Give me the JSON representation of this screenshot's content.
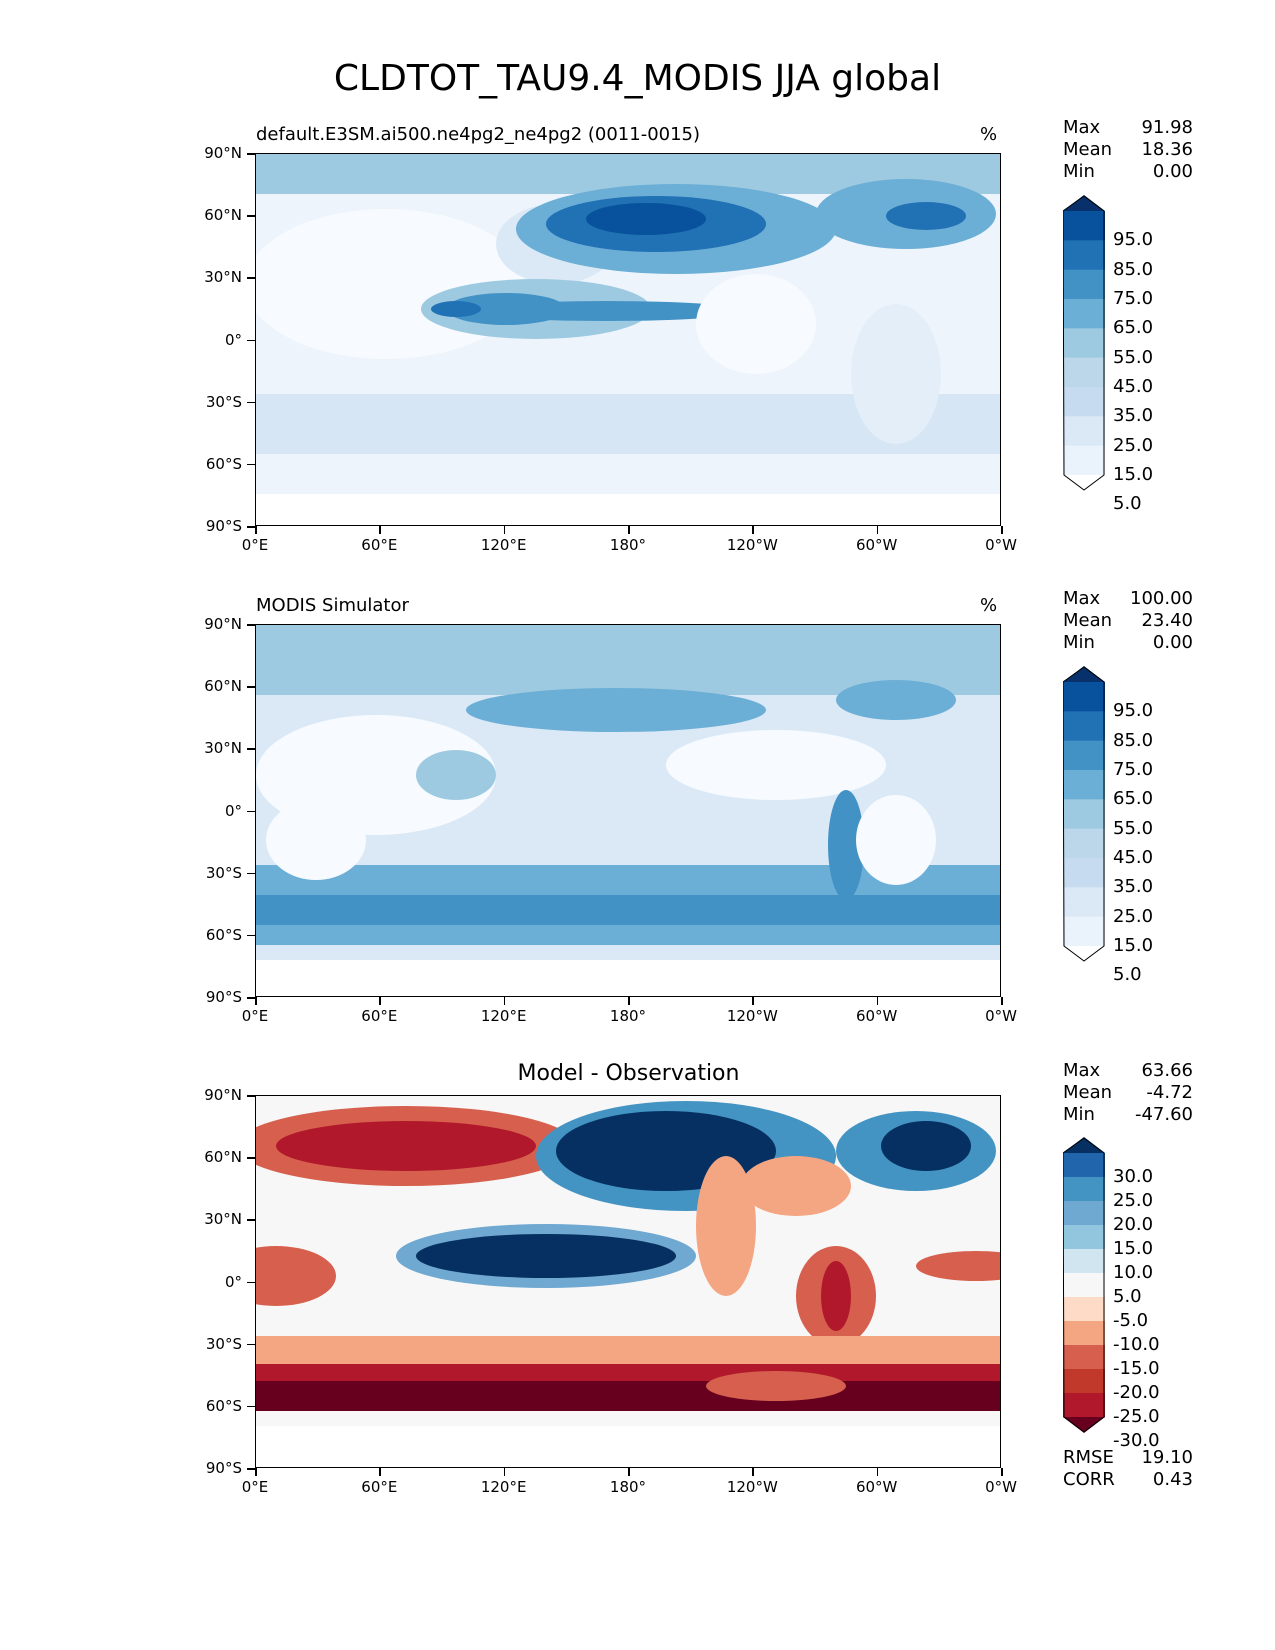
{
  "title": "CLDTOT_TAU9.4_MODIS JJA global",
  "axes": {
    "y_ticks": [
      "90°N",
      "60°N",
      "30°N",
      "0°",
      "30°S",
      "60°S",
      "90°S"
    ],
    "x_ticks": [
      "0°E",
      "60°E",
      "120°E",
      "180°",
      "120°W",
      "60°W",
      "0°W"
    ]
  },
  "panels": [
    {
      "title": "default.E3SM.ai500.ne4pg2_ne4pg2 (0011-0015)",
      "units": "%",
      "stats": [
        {
          "label": "Max",
          "value": "91.98"
        },
        {
          "label": "Mean",
          "value": "18.36"
        },
        {
          "label": "Min",
          "value": "0.00"
        }
      ],
      "colorbar": {
        "labels": [
          "95.0",
          "85.0",
          "75.0",
          "65.0",
          "55.0",
          "45.0",
          "35.0",
          "25.0",
          "15.0",
          "5.0"
        ],
        "colors": [
          "#08306b",
          "#08519c",
          "#2171b5",
          "#4292c6",
          "#6baed6",
          "#9ecae1",
          "#bcd7ea",
          "#c6dbef",
          "#dbe9f6",
          "#eaf2fb",
          "#ffffff"
        ]
      }
    },
    {
      "title": "MODIS Simulator",
      "units": "%",
      "stats": [
        {
          "label": "Max",
          "value": "100.00"
        },
        {
          "label": "Mean",
          "value": "23.40"
        },
        {
          "label": "Min",
          "value": "0.00"
        }
      ],
      "colorbar": {
        "labels": [
          "95.0",
          "85.0",
          "75.0",
          "65.0",
          "55.0",
          "45.0",
          "35.0",
          "25.0",
          "15.0",
          "5.0"
        ],
        "colors": [
          "#08306b",
          "#08519c",
          "#2171b5",
          "#4292c6",
          "#6baed6",
          "#9ecae1",
          "#bcd7ea",
          "#c6dbef",
          "#dbe9f6",
          "#eaf2fb",
          "#ffffff"
        ]
      }
    },
    {
      "title": "Model - Observation",
      "units": "",
      "stats": [
        {
          "label": "Max",
          "value": "63.66"
        },
        {
          "label": "Mean",
          "value": "-4.72"
        },
        {
          "label": "Min",
          "value": "-47.60"
        }
      ],
      "extra_stats": [
        {
          "label": "RMSE",
          "value": "19.10"
        },
        {
          "label": "CORR",
          "value": "0.43"
        }
      ],
      "colorbar": {
        "labels": [
          "30.0",
          "25.0",
          "20.0",
          "15.0",
          "10.0",
          "5.0",
          "-5.0",
          "-10.0",
          "-15.0",
          "-20.0",
          "-25.0",
          "-30.0"
        ],
        "colors": [
          "#053061",
          "#2166ac",
          "#4393c3",
          "#6fa8d0",
          "#92c5de",
          "#d1e5f0",
          "#f7f7f7",
          "#fddbc7",
          "#f4a582",
          "#d6604d",
          "#c0392b",
          "#b2182b",
          "#67001f"
        ]
      }
    }
  ]
}
